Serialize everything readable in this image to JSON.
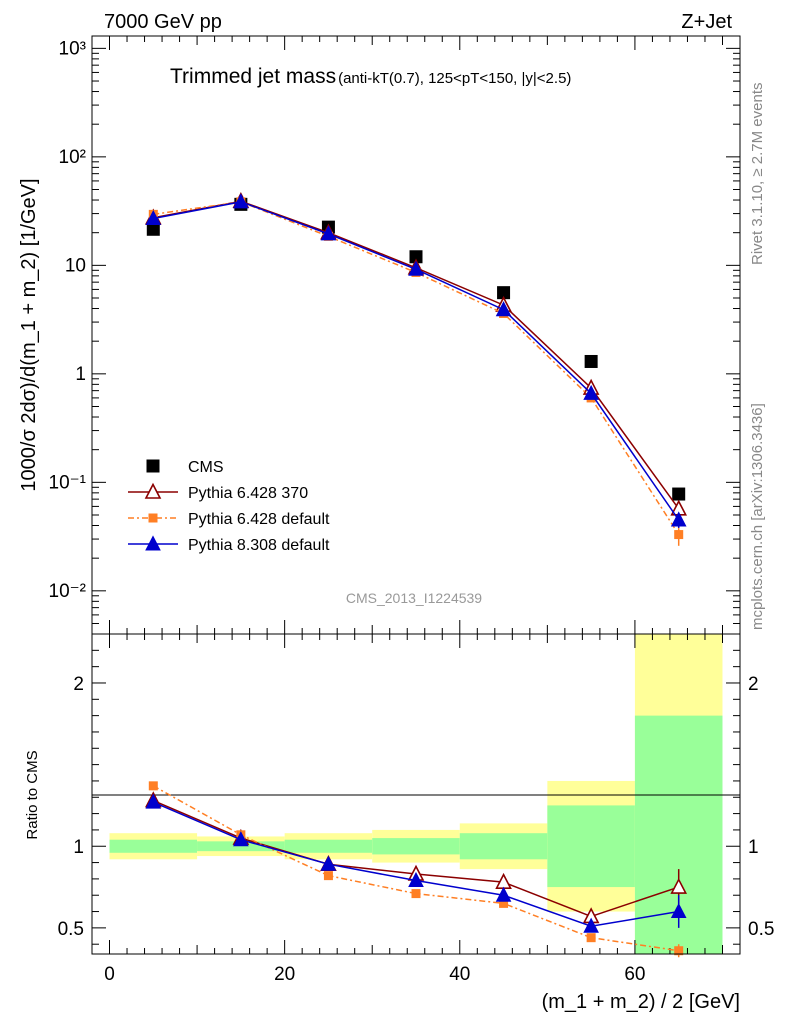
{
  "header": {
    "left": "7000 GeV pp",
    "right": "Z+Jet"
  },
  "side_labels": {
    "rivet": "Rivet 3.1.10, ≥ 2.7M events",
    "mcplots": "mcplots.cern.ch [arXiv:1306.3436]"
  },
  "analysis_id": "CMS_2013_I1224539",
  "chart_data": [
    {
      "type": "line",
      "panel": "main",
      "title": "Trimmed jet mass",
      "title_detail": "(anti-kT(0.7), 125<pT<150, |y|<2.5)",
      "ylabel": "1000/σ 2dσ)/d(m_1 + m_2) [1/GeV]",
      "xlabel": "",
      "yscale": "log",
      "ylim": [
        0.004,
        1300
      ],
      "xlim": [
        -2,
        72
      ],
      "ytick_labels": [
        "10⁻²",
        "10⁻¹",
        "1",
        "10",
        "10²",
        "10³"
      ],
      "legend_position": "bottom-left",
      "x": [
        5,
        15,
        25,
        35,
        45,
        55,
        65
      ],
      "series": [
        {
          "name": "CMS",
          "color": "#000000",
          "marker": "square",
          "values": [
            21.5,
            36.5,
            22.5,
            12.0,
            5.6,
            1.3,
            0.078
          ]
        },
        {
          "name": "Pythia 6.428 370",
          "color": "#8b0000",
          "marker": "open-triangle",
          "values": [
            27.5,
            39.0,
            20.0,
            9.5,
            4.3,
            0.74,
            0.057
          ],
          "err_last": 0.006
        },
        {
          "name": "Pythia 6.428 default",
          "color": "#ff7f24",
          "marker": "square",
          "dash": true,
          "values": [
            29.5,
            38.5,
            18.5,
            8.6,
            3.6,
            0.6,
            0.033
          ],
          "err_last": 0.007
        },
        {
          "name": "Pythia 8.308 default",
          "color": "#0000cd",
          "marker": "triangle",
          "values": [
            27.0,
            38.5,
            19.5,
            9.2,
            3.9,
            0.66,
            0.045
          ],
          "err_last": 0.007
        }
      ]
    },
    {
      "type": "line",
      "panel": "ratio",
      "ylabel": "Ratio to CMS",
      "xlabel": "(m_1 + m_2) / 2 [GeV]",
      "ylim": [
        0.34,
        2.3
      ],
      "xlim": [
        -2,
        72
      ],
      "ytick_labels": [
        "0.5",
        "1",
        "2"
      ],
      "xtick_labels": [
        "0",
        "20",
        "40",
        "60"
      ],
      "bands": {
        "edges": [
          0,
          10,
          20,
          30,
          40,
          50,
          60,
          70
        ],
        "yellow": [
          [
            0.92,
            1.08
          ],
          [
            0.94,
            1.06
          ],
          [
            0.92,
            1.08
          ],
          [
            0.9,
            1.1
          ],
          [
            0.86,
            1.14
          ],
          [
            0.6,
            1.4
          ],
          [
            0.34,
            2.3
          ]
        ],
        "green": [
          [
            0.96,
            1.04
          ],
          [
            0.97,
            1.03
          ],
          [
            0.96,
            1.04
          ],
          [
            0.95,
            1.05
          ],
          [
            0.92,
            1.08
          ],
          [
            0.75,
            1.25
          ],
          [
            0.34,
            1.8
          ]
        ],
        "yellow_color": "#ffff99",
        "green_color": "#99ff99"
      },
      "x": [
        5,
        15,
        25,
        35,
        45,
        55,
        65
      ],
      "series": [
        {
          "name": "Pythia 6.428 370",
          "color": "#8b0000",
          "marker": "open-triangle",
          "values": [
            1.28,
            1.05,
            0.89,
            0.83,
            0.78,
            0.57,
            0.75
          ],
          "err_last": 0.11
        },
        {
          "name": "Pythia 6.428 default",
          "color": "#ff7f24",
          "marker": "square",
          "dash": true,
          "values": [
            1.37,
            1.07,
            0.82,
            0.71,
            0.65,
            0.44,
            0.36
          ],
          "err_last": 0.04
        },
        {
          "name": "Pythia 8.308 default",
          "color": "#0000cd",
          "marker": "triangle",
          "values": [
            1.27,
            1.04,
            0.89,
            0.79,
            0.7,
            0.51,
            0.6
          ],
          "err_last": 0.1
        }
      ]
    }
  ]
}
